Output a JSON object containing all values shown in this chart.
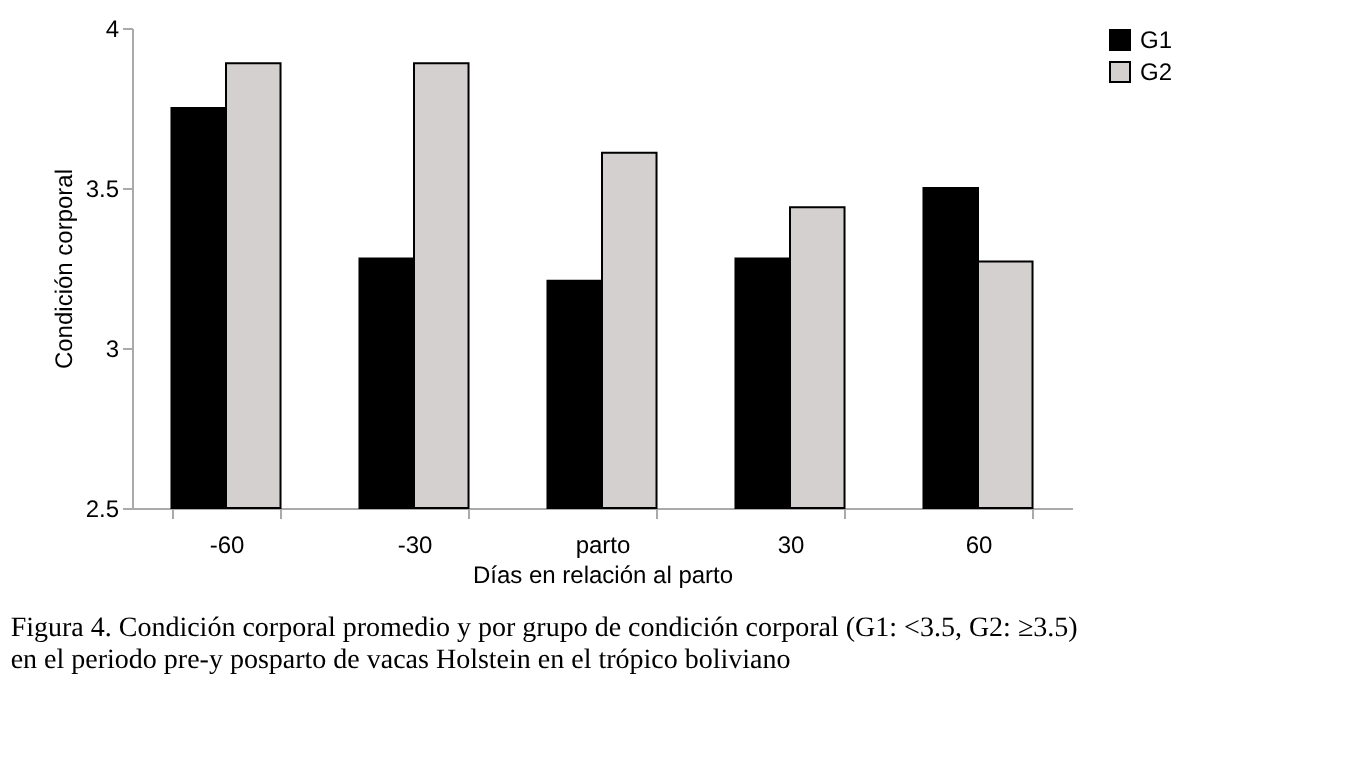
{
  "chart_data": {
    "type": "bar",
    "xlabel": "Días en relación al parto",
    "ylabel": "Condición corporal",
    "categories": [
      "-60",
      "-30",
      "parto",
      "30",
      "60"
    ],
    "series": [
      {
        "name": "G1",
        "color": "#000000",
        "values": [
          3.75,
          3.28,
          3.21,
          3.28,
          3.5
        ]
      },
      {
        "name": "G2",
        "color": "#d4d0d0",
        "values": [
          3.89,
          3.89,
          3.61,
          3.44,
          3.27
        ]
      }
    ],
    "ylim": [
      2.5,
      4
    ],
    "yticks": [
      2.5,
      3,
      3.5,
      4
    ],
    "grid": false,
    "legend": "right",
    "annotations": [
      "Figura 4.   Condición corporal promedio y por grupo de condición corporal (G1: <3.5, G2: ≥3.5)",
      "en el periodo pre-y posparto de vacas Holstein en el trópico boliviano"
    ]
  }
}
